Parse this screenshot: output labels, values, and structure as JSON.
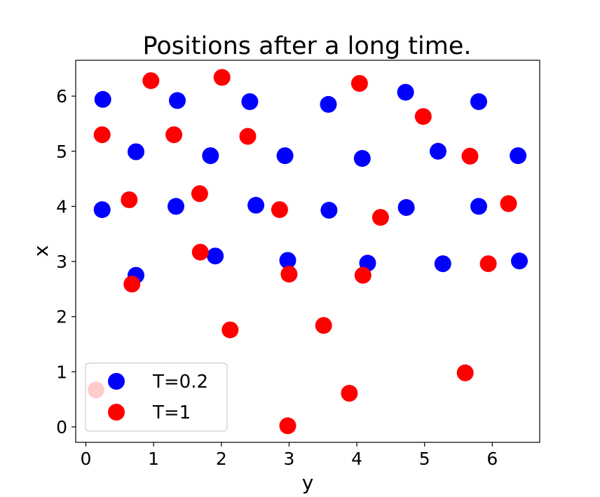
{
  "chart_data": {
    "type": "scatter",
    "title": "Positions after a long time.",
    "xlabel": "y",
    "ylabel": "x",
    "xlim": [
      -0.15,
      6.7
    ],
    "ylim": [
      -0.28,
      6.65
    ],
    "xticks": [
      "0",
      "1",
      "2",
      "3",
      "4",
      "5",
      "6"
    ],
    "yticks": [
      "0",
      "1",
      "2",
      "3",
      "4",
      "5",
      "6"
    ],
    "grid": false,
    "legend_position": "lower-left",
    "series": [
      {
        "name": "T=0.2",
        "color": "#0000ff",
        "points": [
          [
            0.25,
            5.94
          ],
          [
            1.35,
            5.92
          ],
          [
            2.42,
            5.9
          ],
          [
            3.58,
            5.85
          ],
          [
            4.72,
            6.07
          ],
          [
            5.8,
            5.9
          ],
          [
            0.74,
            4.99
          ],
          [
            1.84,
            4.92
          ],
          [
            2.94,
            4.92
          ],
          [
            4.08,
            4.87
          ],
          [
            5.2,
            5.0
          ],
          [
            6.38,
            4.92
          ],
          [
            0.24,
            3.94
          ],
          [
            1.33,
            4.0
          ],
          [
            2.51,
            4.02
          ],
          [
            3.59,
            3.93
          ],
          [
            4.73,
            3.98
          ],
          [
            5.8,
            4.0
          ],
          [
            0.74,
            2.75
          ],
          [
            1.91,
            3.1
          ],
          [
            2.98,
            3.02
          ],
          [
            4.16,
            2.97
          ],
          [
            5.27,
            2.96
          ],
          [
            6.4,
            3.01
          ]
        ]
      },
      {
        "name": "T=1",
        "color": "#ff0000",
        "points": [
          [
            0.96,
            6.28
          ],
          [
            2.01,
            6.34
          ],
          [
            4.04,
            6.23
          ],
          [
            4.98,
            5.63
          ],
          [
            0.24,
            5.3
          ],
          [
            1.3,
            5.3
          ],
          [
            2.39,
            5.27
          ],
          [
            5.67,
            4.91
          ],
          [
            0.64,
            4.12
          ],
          [
            1.68,
            4.23
          ],
          [
            2.86,
            3.94
          ],
          [
            4.35,
            3.8
          ],
          [
            6.24,
            4.05
          ],
          [
            1.69,
            3.17
          ],
          [
            0.68,
            2.59
          ],
          [
            3.0,
            2.77
          ],
          [
            4.09,
            2.75
          ],
          [
            5.94,
            2.96
          ],
          [
            2.13,
            1.76
          ],
          [
            3.51,
            1.84
          ],
          [
            5.6,
            0.98
          ],
          [
            3.89,
            0.61
          ],
          [
            2.98,
            0.02
          ],
          [
            0.15,
            0.67
          ]
        ]
      }
    ],
    "legend": [
      {
        "label": "T=0.2",
        "color": "#0000ff"
      },
      {
        "label": "T=1",
        "color": "#ff0000"
      }
    ]
  }
}
